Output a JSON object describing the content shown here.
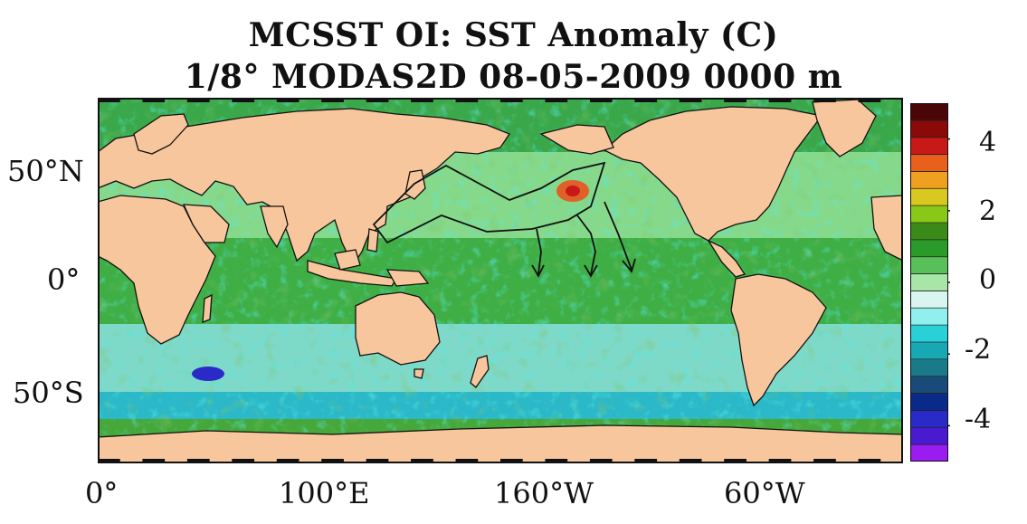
{
  "title": {
    "line1": "MCSST OI:  SST Anomaly (C)",
    "line2": "1/8° MODAS2D 08-05-2009 0000 m"
  },
  "axes": {
    "lat_labels": [
      "50°N",
      "0°",
      "50°S"
    ],
    "lon_labels": [
      "0°",
      "100°E",
      "160°W",
      "60°W"
    ]
  },
  "colorbar": {
    "tick_labels": [
      "4",
      "2",
      "0",
      "-2",
      "-4"
    ],
    "range": [
      -5,
      5
    ],
    "colors": [
      "#9a1cf0",
      "#4a1ad0",
      "#2a2ac8",
      "#0a2a8a",
      "#1a4a7a",
      "#1a7a8a",
      "#18a8b4",
      "#28d0d8",
      "#8ff0ee",
      "#d8f6ef",
      "#a8e6a8",
      "#58c058",
      "#2a9a2a",
      "#3a8a1a",
      "#8ac818",
      "#d8c820",
      "#f0a020",
      "#e8601a",
      "#c81818",
      "#8a0a0a",
      "#4a0606"
    ]
  },
  "map": {
    "projection": "equirectangular",
    "ocean_colors": {
      "warm": "#2f9e3a",
      "mid": "#9adf8f",
      "cool": "#25c8d6",
      "cold": "#1a7fa6",
      "hot": "#e0602a",
      "land": "#f7c69d"
    }
  }
}
